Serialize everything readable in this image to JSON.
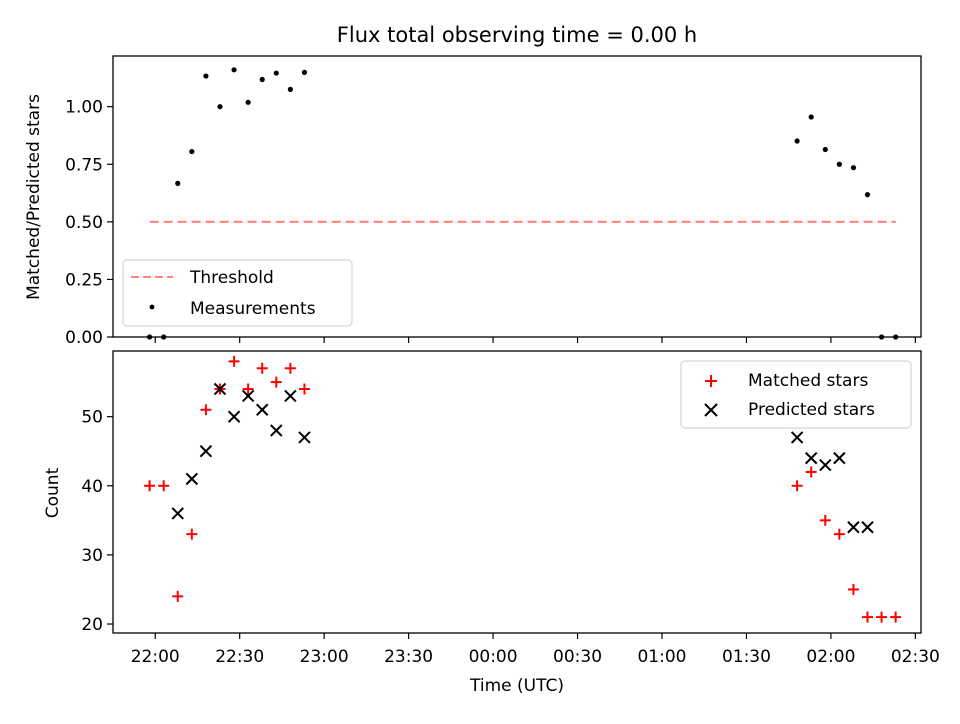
{
  "title": "Flux total observing time = 0.00 h",
  "colors": {
    "threshold": "#ff8080",
    "measurements": "#000000",
    "matched": "#ff0000",
    "predicted": "#000000"
  },
  "chart_data": [
    {
      "type": "scatter",
      "title": "Flux total observing time = 0.00 h",
      "ylabel": "Matched/Predicted stars",
      "xlabel": "",
      "ylim": [
        0,
        1.22
      ],
      "yticks": [
        0.0,
        0.25,
        0.5,
        0.75,
        1.0
      ],
      "ytick_labels": [
        "0.00",
        "0.25",
        "0.50",
        "0.75",
        "1.00"
      ],
      "legend": {
        "placement": "lower-left",
        "entries": [
          "Threshold",
          "Measurements"
        ]
      },
      "series": [
        {
          "name": "Threshold",
          "style": "dashed-line",
          "x": [
            "21:58",
            "02:23"
          ],
          "y": [
            0.5,
            0.5
          ]
        },
        {
          "name": "Measurements",
          "style": "dot",
          "x": [
            "21:58",
            "22:03",
            "22:08",
            "22:13",
            "22:18",
            "22:23",
            "22:28",
            "22:33",
            "22:38",
            "22:43",
            "22:48",
            "22:53",
            "01:48",
            "01:53",
            "01:58",
            "02:03",
            "02:08",
            "02:13",
            "02:18",
            "02:23"
          ],
          "y": [
            0.0,
            0.0,
            0.667,
            0.805,
            1.133,
            1.0,
            1.16,
            1.019,
            1.118,
            1.146,
            1.075,
            1.149,
            0.851,
            0.955,
            0.814,
            0.75,
            0.735,
            0.618,
            0.0,
            0.0
          ]
        }
      ]
    },
    {
      "type": "scatter",
      "xlabel": "Time (UTC)",
      "ylabel": "Count",
      "ylim": [
        18.7,
        59.5
      ],
      "yticks": [
        20,
        30,
        40,
        50
      ],
      "x_range": [
        "21:45",
        "02:32"
      ],
      "xticks": [
        "22:00",
        "22:30",
        "23:00",
        "23:30",
        "00:00",
        "00:30",
        "01:00",
        "01:30",
        "02:00",
        "02:30"
      ],
      "legend": {
        "placement": "top-right",
        "entries": [
          "Matched stars",
          "Predicted stars"
        ]
      },
      "series": [
        {
          "name": "Matched stars",
          "marker": "plus",
          "x": [
            "21:58",
            "22:03",
            "22:08",
            "22:13",
            "22:18",
            "22:23",
            "22:28",
            "22:33",
            "22:38",
            "22:43",
            "22:48",
            "22:53",
            "01:48",
            "01:53",
            "01:58",
            "02:03",
            "02:08",
            "02:13",
            "02:18",
            "02:23"
          ],
          "y": [
            40,
            40,
            24,
            33,
            51,
            54,
            58,
            54,
            57,
            55,
            57,
            54,
            40,
            42,
            35,
            33,
            25,
            21,
            21,
            21
          ]
        },
        {
          "name": "Predicted stars",
          "marker": "x",
          "x": [
            "22:08",
            "22:13",
            "22:18",
            "22:23",
            "22:28",
            "22:33",
            "22:38",
            "22:43",
            "22:48",
            "22:53",
            "01:48",
            "01:53",
            "01:58",
            "02:03",
            "02:08",
            "02:13"
          ],
          "y": [
            36,
            41,
            45,
            54,
            50,
            53,
            51,
            48,
            53,
            47,
            47,
            44,
            43,
            44,
            34,
            34
          ]
        }
      ]
    }
  ]
}
